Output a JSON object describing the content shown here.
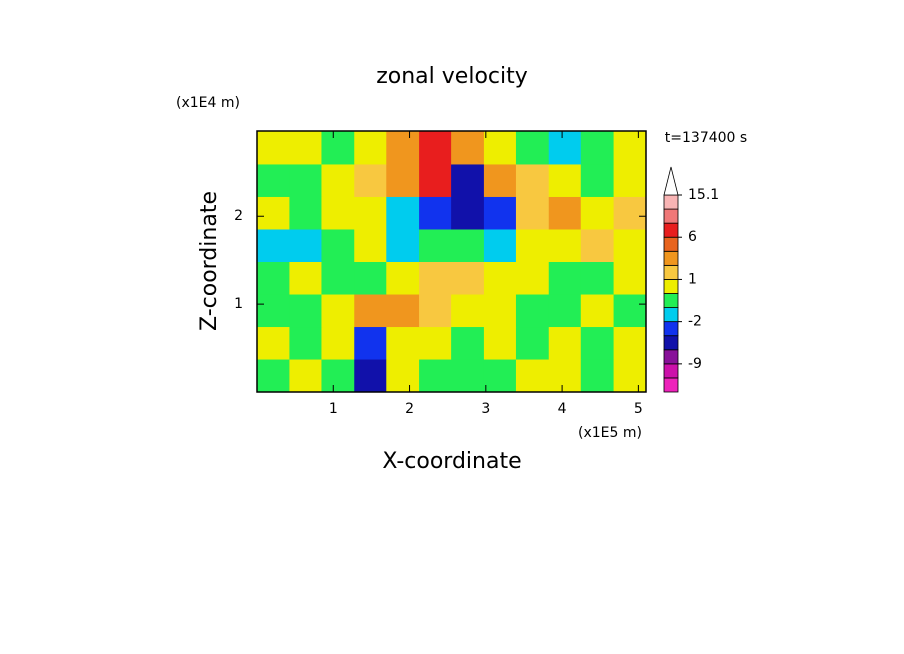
{
  "chart_data": {
    "type": "contour",
    "title": "zonal velocity",
    "time_label": "t=137400 s",
    "x_label": "X-coordinate",
    "y_label": "Z-coordinate",
    "x_unit": "(x1E5 m)",
    "y_unit": "(x1E4 m)",
    "xlim": [
      0,
      5.1
    ],
    "ylim": [
      0,
      2.97
    ],
    "xticks": [
      1,
      2,
      3,
      4,
      5
    ],
    "yticks": [
      1,
      2
    ],
    "x": [
      0.21,
      0.64,
      1.06,
      1.49,
      1.91,
      2.34,
      2.76,
      3.19,
      3.61,
      4.04,
      4.46,
      4.89
    ],
    "y": [
      0.19,
      0.56,
      0.93,
      1.3,
      1.67,
      2.04,
      2.41,
      2.78
    ],
    "z": [
      [
        -0.5,
        0.5,
        -0.5,
        -5,
        0.5,
        -0.5,
        -0.5,
        -0.5,
        0.5,
        0.5,
        -0.5,
        0.5
      ],
      [
        0.5,
        -0.5,
        0.5,
        -3,
        0.5,
        0.5,
        -0.5,
        0.5,
        -0.5,
        0.5,
        -0.5,
        0.5
      ],
      [
        -0.5,
        -0.5,
        0.5,
        3,
        3,
        1.5,
        0.5,
        0.5,
        -0.5,
        -0.5,
        0.5,
        -0.5
      ],
      [
        -0.5,
        0.5,
        -0.5,
        -0.5,
        0.5,
        1.5,
        1.5,
        0.5,
        0.5,
        -0.5,
        -0.5,
        0.5
      ],
      [
        -1.5,
        -1.5,
        -0.5,
        0.5,
        -1.5,
        -0.5,
        -0.5,
        -1.5,
        0.5,
        0.5,
        1.5,
        0.5
      ],
      [
        0.5,
        -0.5,
        0.5,
        0.5,
        -1.5,
        -3,
        -5,
        -3,
        1.5,
        3,
        0.5,
        1.5
      ],
      [
        -0.5,
        -0.5,
        0.5,
        1.5,
        3,
        7,
        -5,
        3,
        1.5,
        0.5,
        -0.5,
        0.5
      ],
      [
        0.5,
        0.5,
        -0.5,
        0.5,
        3,
        7,
        3,
        0.5,
        -0.5,
        -1.5,
        -0.5,
        0.5
      ]
    ],
    "colorbar": {
      "levels": [
        -15,
        -12,
        -9,
        -6,
        -4,
        -2,
        -1,
        0,
        1,
        2,
        4,
        6,
        9,
        12,
        15.1
      ],
      "colors": [
        "#ee22bb",
        "#cc11aa",
        "#881199",
        "#1111aa",
        "#1133ee",
        "#00ccee",
        "#22ee55",
        "#eeee00",
        "#f8c840",
        "#f0961e",
        "#e8641e",
        "#e81e1e",
        "#f07878",
        "#f8b4b4"
      ],
      "ticks": [
        15.1,
        6,
        1,
        -2,
        -9
      ]
    }
  }
}
